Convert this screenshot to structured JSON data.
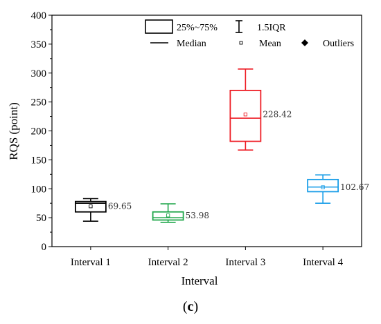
{
  "chart_data": {
    "type": "box",
    "xlabel": "Interval",
    "ylabel": "RQS (point)",
    "ylim": [
      0,
      400
    ],
    "yticks": [
      0,
      50,
      100,
      150,
      200,
      250,
      300,
      350,
      400
    ],
    "categories": [
      "Interval 1",
      "Interval 2",
      "Interval 3",
      "Interval 4"
    ],
    "boxes": [
      {
        "category": "Interval 1",
        "color": "#000000",
        "whisker_low": 44,
        "q1": 60,
        "median": 75,
        "q3": 78,
        "whisker_high": 83,
        "mean": 69.65,
        "mean_label": "69.65"
      },
      {
        "category": "Interval 2",
        "color": "#1fa64a",
        "whisker_low": 42,
        "q1": 46,
        "median": 50,
        "q3": 60,
        "whisker_high": 74,
        "mean": 53.98,
        "mean_label": "53.98"
      },
      {
        "category": "Interval 3",
        "color": "#ee1c24",
        "whisker_low": 167,
        "q1": 182,
        "median": 222,
        "q3": 270,
        "whisker_high": 307,
        "mean": 228.42,
        "mean_label": "228.42"
      },
      {
        "category": "Interval 4",
        "color": "#1a9ee8",
        "whisker_low": 75,
        "q1": 95,
        "median": 103,
        "q3": 116,
        "whisker_high": 124,
        "mean": 102.67,
        "mean_label": "102.67"
      }
    ],
    "legend": {
      "position": "top-right",
      "box_label": "25%~75%",
      "whisker_label": "1.5IQR",
      "median_label": "Median",
      "mean_label": "Mean",
      "outliers_label": "Outliers"
    },
    "grid": false
  },
  "panel_label": "c"
}
